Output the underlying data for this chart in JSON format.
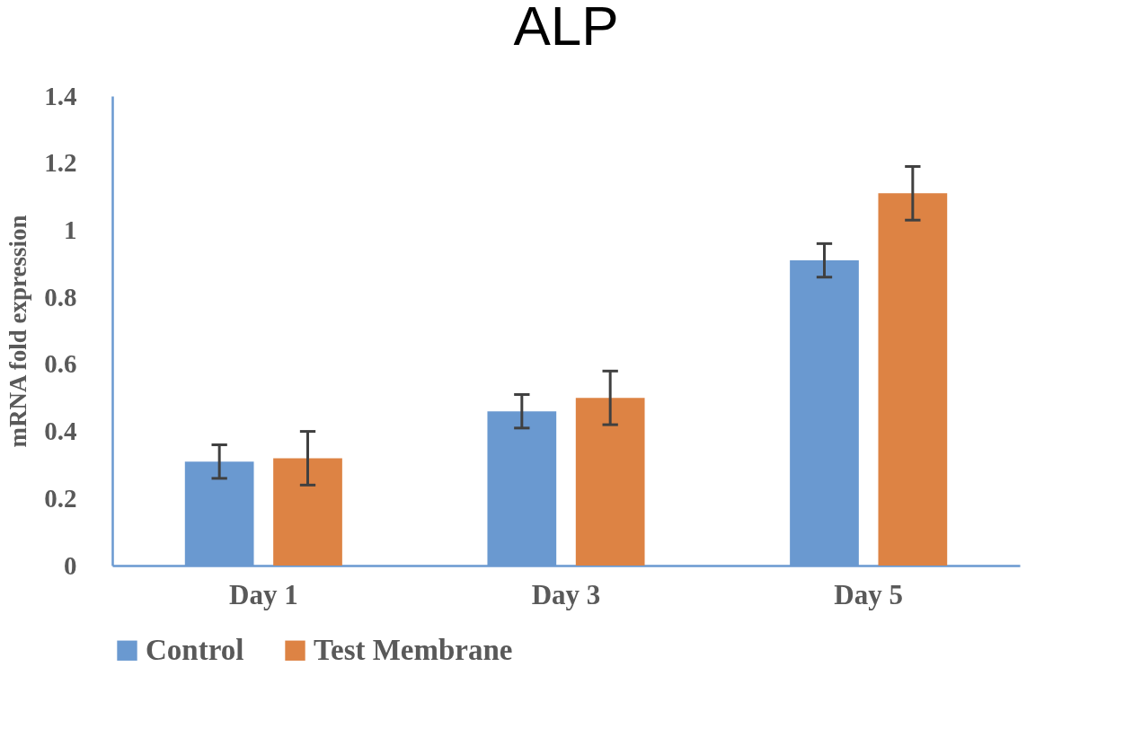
{
  "chart_data": {
    "type": "bar",
    "title": "ALP",
    "ylabel": "mRNA fold expression",
    "categories": [
      "Day 1",
      "Day 3",
      "Day 5"
    ],
    "series": [
      {
        "name": "Control",
        "color": "#6a99d0",
        "values": [
          0.31,
          0.46,
          0.91
        ],
        "errors": [
          0.05,
          0.05,
          0.05
        ]
      },
      {
        "name": "Test Membrane",
        "color": "#dd8344",
        "values": [
          0.32,
          0.5,
          1.11
        ],
        "errors": [
          0.08,
          0.08,
          0.08
        ]
      }
    ],
    "ylim": [
      0,
      1.4
    ],
    "yticks": [
      0,
      0.2,
      0.4,
      0.6,
      0.8,
      1,
      1.2,
      1.4
    ],
    "grid": false,
    "legend": "bottom"
  }
}
